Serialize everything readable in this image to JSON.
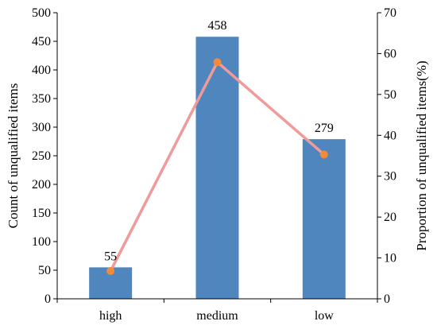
{
  "chart_data": {
    "type": "bar",
    "title": "",
    "categories": [
      "high",
      "medium",
      "low"
    ],
    "series": [
      {
        "name": "",
        "type": "bar",
        "axis": "left",
        "values": [
          55,
          458,
          279
        ],
        "color": "#4f86bd"
      },
      {
        "name": "",
        "type": "line",
        "axis": "right",
        "values": [
          6.8,
          57.9,
          35.3
        ],
        "line_color": "#f09a9a",
        "marker_color": "#f28a3a"
      }
    ],
    "y_left": {
      "label": "Count of unqualified items",
      "range": [
        0,
        500
      ],
      "ticks": [
        0,
        50,
        100,
        150,
        200,
        250,
        300,
        350,
        400,
        450,
        500
      ]
    },
    "y_right": {
      "label": "Proportion of unqualified items(%)",
      "range": [
        0,
        70
      ],
      "ticks": [
        0,
        10,
        20,
        30,
        40,
        50,
        60,
        70
      ]
    },
    "data_labels": [
      "55",
      "458",
      "279"
    ],
    "grid": false,
    "legend": "none"
  }
}
